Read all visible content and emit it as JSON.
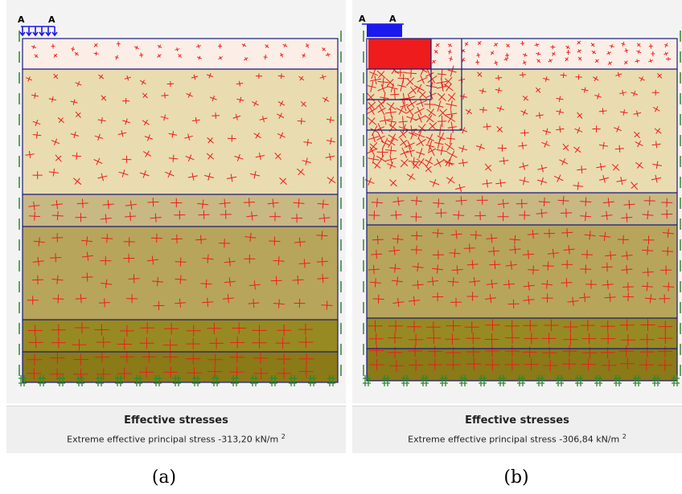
{
  "panels": [
    {
      "id": "a",
      "load_label_left": "A",
      "load_label_right": "A",
      "footer_title": "Effective stresses",
      "footer_text": "Extreme effective principal stress -313,20 kN/m",
      "footer_unit_exp": "2",
      "caption": "(a)"
    },
    {
      "id": "b",
      "load_label_left": "A",
      "load_label_right": "A",
      "footer_title": "Effective stresses",
      "footer_text": "Extreme effective principal stress -306,84 kN/m",
      "footer_unit_exp": "2",
      "caption": "(b)"
    }
  ],
  "colors": {
    "stress_cross": "#ee1c1c",
    "boundary_line": "#1a1a7a",
    "fixity_marks": "#2a8a2a",
    "load": "#1a1aee",
    "layer_1": "#fbeee6",
    "layer_2": "#e9dcb0",
    "layer_3": "#c8b884",
    "layer_4": "#b7a55c",
    "layer_5": "#978a22",
    "layer_6": "#8a7a18"
  }
}
